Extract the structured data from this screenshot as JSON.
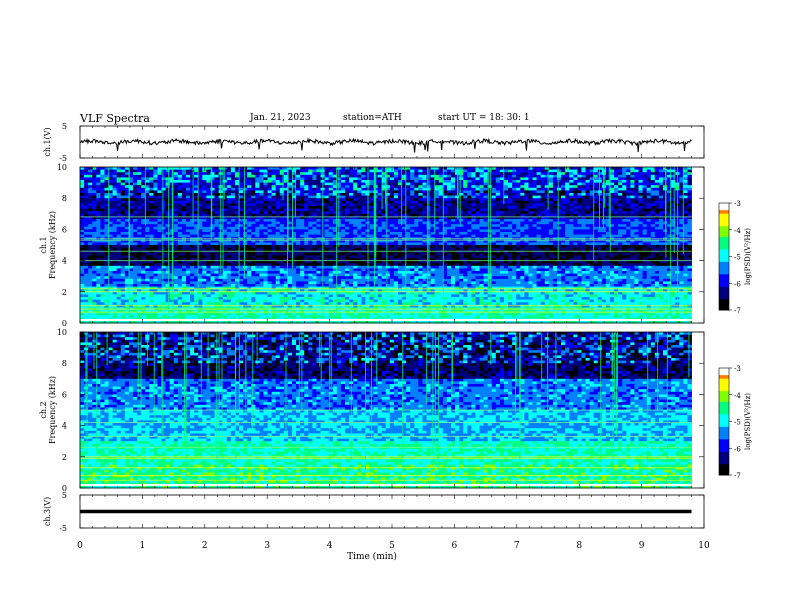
{
  "header": {
    "title": "VLF  Spectra",
    "date": "Jan.  21,  2023",
    "station": "station=ATH",
    "start": "start  UT  =    18: 30: 1"
  },
  "chart_data": [
    {
      "type": "line",
      "panel": "ch1-time-series",
      "ylabel": "ch.1(V)",
      "ylim": [
        -5,
        5
      ],
      "yticks": [
        "5",
        "-5"
      ],
      "xlim": [
        0,
        10
      ],
      "data_end_min": 9.8,
      "baseline_v": 0.0,
      "color": "#000000"
    },
    {
      "type": "heatmap",
      "panel": "ch1-spectrogram",
      "ylabel": "ch.1\nFrequency  (kHz)",
      "ylim": [
        0,
        10
      ],
      "yticks": [
        "0",
        "2",
        "4",
        "6",
        "8",
        "10"
      ],
      "xlim": [
        0,
        10
      ],
      "data_end_min": 9.8,
      "colorbar": {
        "label": "log(PSD)(V²/Hz)",
        "range": [
          -7,
          -3
        ],
        "ticks": [
          "-3",
          "-4",
          "-5",
          "-6",
          "-7"
        ]
      }
    },
    {
      "type": "heatmap",
      "panel": "ch2-spectrogram",
      "ylabel": "ch.2\nFrequency  (kHz)",
      "ylim": [
        0,
        10
      ],
      "yticks": [
        "0",
        "2",
        "4",
        "6",
        "8",
        "10"
      ],
      "xlim": [
        0,
        10
      ],
      "data_end_min": 9.8,
      "colorbar": {
        "label": "log(PSD)(V²/Hz)",
        "range": [
          -7,
          -3
        ],
        "ticks": [
          "-3",
          "-4",
          "-5",
          "-6",
          "-7"
        ]
      }
    },
    {
      "type": "line",
      "panel": "ch3-time-series",
      "ylabel": "ch.3(V)",
      "ylim": [
        -5,
        5
      ],
      "yticks": [
        "5",
        "-5"
      ],
      "xlim": [
        0,
        10
      ],
      "data_end_min": 9.8,
      "baseline_v": 0.0,
      "color": "#000000"
    }
  ],
  "xaxis": {
    "label": "Time  (min)",
    "ticks": [
      "0",
      "1",
      "2",
      "3",
      "4",
      "5",
      "6",
      "7",
      "8",
      "9",
      "10"
    ]
  },
  "colormap": [
    "#000000",
    "#00007f",
    "#0000ff",
    "#0080ff",
    "#00ffff",
    "#00ff80",
    "#80ff00",
    "#ffff00",
    "#ff8000",
    "#ff0000",
    "#ffffff"
  ]
}
